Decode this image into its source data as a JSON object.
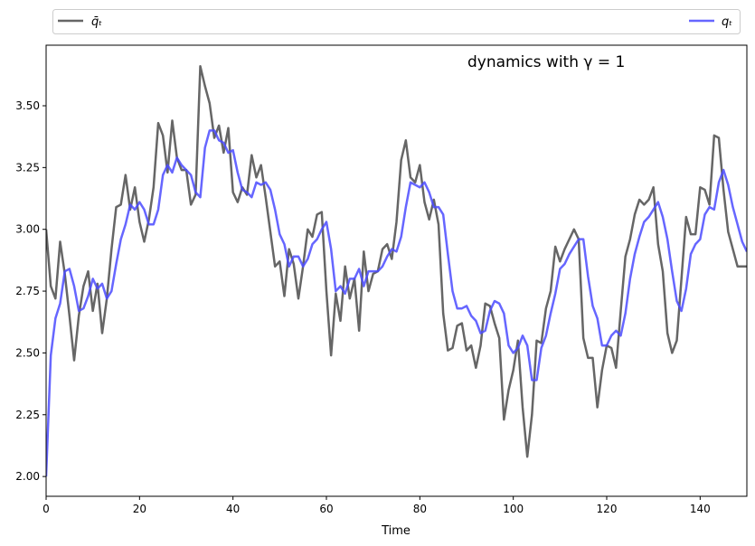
{
  "chart_data": {
    "type": "line",
    "title": "dynamics with γ = 1",
    "xlabel": "Time",
    "ylabel": "",
    "xlim": [
      0,
      150
    ],
    "ylim": [
      1.92,
      3.745
    ],
    "xticks": [
      0,
      20,
      40,
      60,
      80,
      100,
      120,
      140
    ],
    "yticks": [
      2.0,
      2.25,
      2.5,
      2.75,
      3.0,
      3.25,
      3.5
    ],
    "ytick_labels": [
      "2.00",
      "2.25",
      "2.50",
      "2.75",
      "3.00",
      "3.25",
      "3.50"
    ],
    "grid": false,
    "legend_placement": "top, above plot, expanded across width",
    "series": [
      {
        "name": "q̄ₜ",
        "color": "#555555",
        "values": [
          3.0,
          2.77,
          2.72,
          2.95,
          2.82,
          2.65,
          2.47,
          2.65,
          2.77,
          2.83,
          2.67,
          2.78,
          2.58,
          2.72,
          2.92,
          3.09,
          3.1,
          3.22,
          3.08,
          3.17,
          3.03,
          2.95,
          3.04,
          3.17,
          3.43,
          3.38,
          3.23,
          3.44,
          3.29,
          3.24,
          3.24,
          3.1,
          3.14,
          3.66,
          3.58,
          3.51,
          3.37,
          3.42,
          3.31,
          3.41,
          3.15,
          3.11,
          3.17,
          3.14,
          3.3,
          3.21,
          3.26,
          3.13,
          2.99,
          2.85,
          2.87,
          2.73,
          2.92,
          2.86,
          2.72,
          2.85,
          3.0,
          2.97,
          3.06,
          3.07,
          2.75,
          2.49,
          2.74,
          2.63,
          2.85,
          2.72,
          2.8,
          2.59,
          2.91,
          2.75,
          2.82,
          2.83,
          2.92,
          2.94,
          2.88,
          3.03,
          3.28,
          3.36,
          3.21,
          3.19,
          3.26,
          3.11,
          3.04,
          3.12,
          3.02,
          2.66,
          2.51,
          2.52,
          2.61,
          2.62,
          2.51,
          2.53,
          2.44,
          2.53,
          2.7,
          2.69,
          2.62,
          2.56,
          2.23,
          2.35,
          2.43,
          2.55,
          2.28,
          2.08,
          2.25,
          2.55,
          2.54,
          2.68,
          2.75,
          2.93,
          2.87,
          2.92,
          2.96,
          3.0,
          2.96,
          2.56,
          2.48,
          2.48,
          2.28,
          2.43,
          2.53,
          2.52,
          2.44,
          2.67,
          2.89,
          2.96,
          3.06,
          3.12,
          3.1,
          3.12,
          3.17,
          2.94,
          2.83,
          2.58,
          2.5,
          2.55,
          2.8,
          3.05,
          2.98,
          2.98,
          3.17,
          3.16,
          3.1,
          3.38,
          3.37,
          3.16,
          2.99,
          2.92,
          2.85,
          2.85,
          2.85
        ]
      },
      {
        "name": "qₜ",
        "color": "#4b4bff",
        "values": [
          2.0,
          2.49,
          2.64,
          2.7,
          2.83,
          2.84,
          2.77,
          2.67,
          2.68,
          2.73,
          2.8,
          2.76,
          2.78,
          2.72,
          2.75,
          2.86,
          2.96,
          3.02,
          3.1,
          3.08,
          3.11,
          3.08,
          3.02,
          3.02,
          3.08,
          3.22,
          3.26,
          3.23,
          3.29,
          3.26,
          3.24,
          3.22,
          3.15,
          3.13,
          3.33,
          3.4,
          3.4,
          3.36,
          3.35,
          3.31,
          3.32,
          3.23,
          3.16,
          3.15,
          3.13,
          3.19,
          3.18,
          3.19,
          3.16,
          3.08,
          2.98,
          2.94,
          2.85,
          2.89,
          2.89,
          2.85,
          2.88,
          2.94,
          2.96,
          3.0,
          3.03,
          2.92,
          2.75,
          2.77,
          2.74,
          2.8,
          2.8,
          2.84,
          2.77,
          2.83,
          2.83,
          2.83,
          2.85,
          2.89,
          2.92,
          2.91,
          2.97,
          3.09,
          3.19,
          3.18,
          3.17,
          3.19,
          3.15,
          3.09,
          3.09,
          3.06,
          2.9,
          2.75,
          2.68,
          2.68,
          2.69,
          2.65,
          2.63,
          2.58,
          2.59,
          2.67,
          2.71,
          2.7,
          2.66,
          2.53,
          2.5,
          2.52,
          2.57,
          2.53,
          2.39,
          2.39,
          2.52,
          2.57,
          2.66,
          2.74,
          2.84,
          2.86,
          2.9,
          2.93,
          2.96,
          2.96,
          2.81,
          2.69,
          2.64,
          2.53,
          2.53,
          2.57,
          2.59,
          2.57,
          2.66,
          2.8,
          2.9,
          2.97,
          3.03,
          3.05,
          3.08,
          3.11,
          3.05,
          2.96,
          2.83,
          2.71,
          2.67,
          2.76,
          2.9,
          2.94,
          2.96,
          3.06,
          3.09,
          3.08,
          3.19,
          3.24,
          3.18,
          3.09,
          3.02,
          2.95,
          2.91
        ]
      }
    ]
  }
}
